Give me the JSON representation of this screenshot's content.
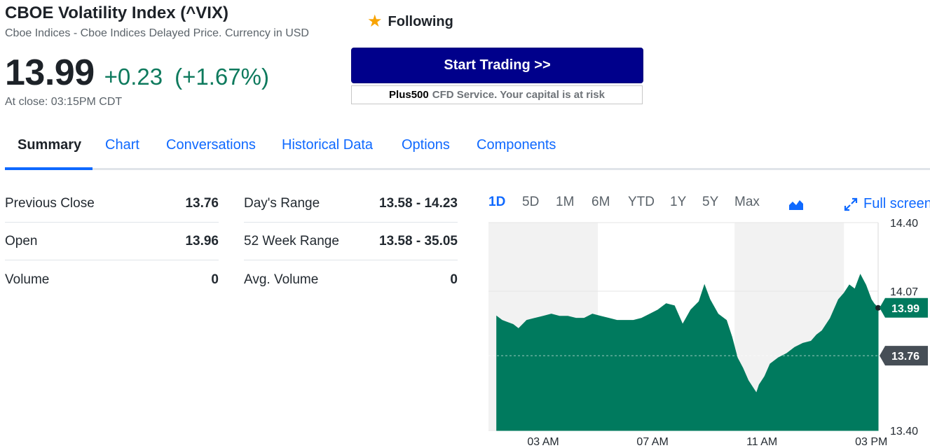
{
  "header": {
    "title": "CBOE Volatility Index (^VIX)",
    "subtitle": "Cboe Indices - Cboe Indices Delayed Price. Currency in USD",
    "price": "13.99",
    "change": "+0.23",
    "change_pct": "(+1.67%)",
    "close_time": "At close: 03:15PM CDT",
    "accent_color": "#0e7a5d"
  },
  "follow": {
    "label": "Following",
    "icon": "star-icon"
  },
  "promo": {
    "button_label": "Start Trading >>",
    "brand": "Plus500",
    "disclaimer": "CFD Service. Your capital is at risk"
  },
  "tabs": [
    "Summary",
    "Chart",
    "Conversations",
    "Historical Data",
    "Options",
    "Components"
  ],
  "stats": {
    "left": [
      {
        "label": "Previous Close",
        "value": "13.76"
      },
      {
        "label": "Open",
        "value": "13.96"
      },
      {
        "label": "Volume",
        "value": "0"
      }
    ],
    "right": [
      {
        "label": "Day's Range",
        "value": "13.58 - 14.23"
      },
      {
        "label": "52 Week Range",
        "value": "13.58 - 35.05"
      },
      {
        "label": "Avg. Volume",
        "value": "0"
      }
    ]
  },
  "ranges": [
    "1D",
    "5D",
    "1M",
    "6M",
    "YTD",
    "1Y",
    "5Y",
    "Max"
  ],
  "fullscreen_label": "Full screen",
  "chart_data": {
    "type": "area",
    "color": "#007a5e",
    "ylim": [
      13.4,
      14.4
    ],
    "y_ticks": [
      "14.40",
      "14.07",
      "13.40"
    ],
    "x_ticks": [
      "03 AM",
      "07 AM",
      "11 AM",
      "03 PM"
    ],
    "current_label": "13.99",
    "previous_close_label": "13.76",
    "previous_close": 13.76,
    "x": [
      1.3,
      1.5,
      1.7,
      1.9,
      2.1,
      2.4,
      2.7,
      3.0,
      3.3,
      3.6,
      3.9,
      4.2,
      4.5,
      4.8,
      5.1,
      5.4,
      5.7,
      6.0,
      6.3,
      6.6,
      6.9,
      7.2,
      7.5,
      7.8,
      8.1,
      8.4,
      8.7,
      8.9,
      9.1,
      9.4,
      9.7,
      9.9,
      10.1,
      10.3,
      10.5,
      10.7,
      10.8,
      10.9,
      11.1,
      11.3,
      11.6,
      11.9,
      12.2,
      12.5,
      12.8,
      13.0,
      13.2,
      13.5,
      13.8,
      14.0,
      14.2,
      14.4,
      14.6,
      14.8,
      15.0,
      15.1,
      15.25
    ],
    "values": [
      13.95,
      13.93,
      13.92,
      13.91,
      13.89,
      13.93,
      13.94,
      13.95,
      13.96,
      13.95,
      13.95,
      13.94,
      13.94,
      13.96,
      13.95,
      13.94,
      13.93,
      13.93,
      13.93,
      13.94,
      13.96,
      13.98,
      14.01,
      14.0,
      13.91,
      13.98,
      14.02,
      14.1,
      14.03,
      13.96,
      13.93,
      13.85,
      13.75,
      13.7,
      13.64,
      13.6,
      13.58,
      13.62,
      13.66,
      13.72,
      13.75,
      13.77,
      13.8,
      13.82,
      13.83,
      13.86,
      13.88,
      13.94,
      14.03,
      14.06,
      14.1,
      14.08,
      14.15,
      14.1,
      14.03,
      14.01,
      13.99
    ],
    "highlighted_sessions": [
      [
        1.0,
        5.0
      ],
      [
        10.0,
        14.0
      ]
    ]
  }
}
